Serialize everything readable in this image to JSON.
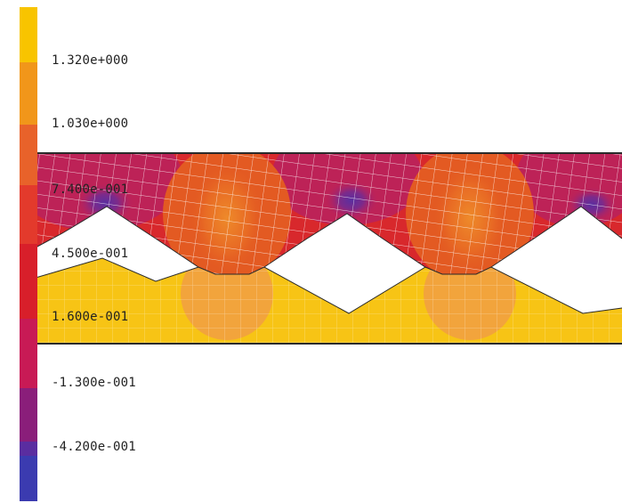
{
  "legend": {
    "labels": [
      "1.320e+000",
      "1.030e+000",
      "7.400e-001",
      "4.500e-001",
      "1.600e-001",
      "-1.300e-001",
      "-4.200e-001"
    ],
    "colors": [
      "#f8c400",
      "#f1961a",
      "#e8622a",
      "#e33a2c",
      "#d81f2a",
      "#c81a55",
      "#8a1e7a",
      "#5a2da0",
      "#3b3bb0"
    ]
  },
  "model": {
    "colors": {
      "lower_body": "#f7c415",
      "lower_contact_zone": "#f2a43c",
      "upper_body": "#d8282c",
      "upper_hot": "#e35a22",
      "upper_core": "#ee8a2a",
      "upper_cold": "#b8215f",
      "upper_coldest": "#5a2fa0",
      "outline": "#2a2a2a",
      "mesh_line": "#ffffff"
    }
  }
}
